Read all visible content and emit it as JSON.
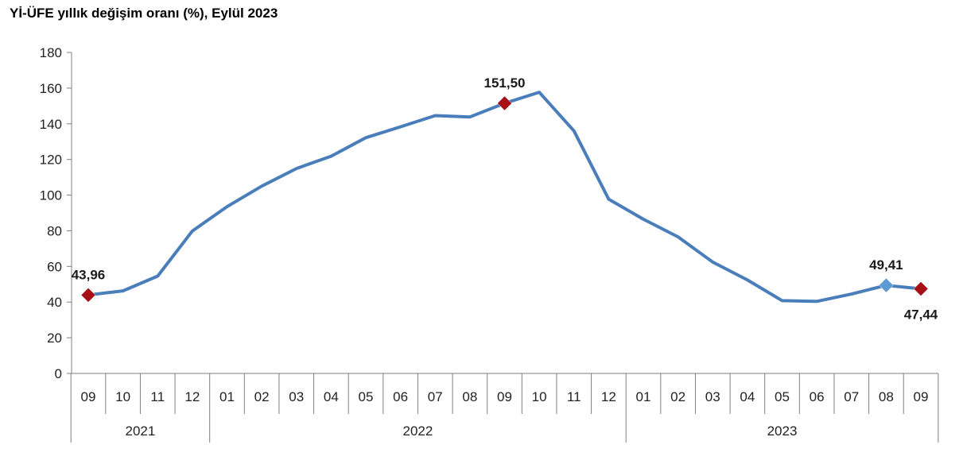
{
  "chart_data": {
    "type": "line",
    "title": "Yİ-ÜFE yıllık değişim oranı (%), Eylül 2023",
    "xlabel": "",
    "ylabel": "",
    "ylim": [
      0,
      180
    ],
    "yticks": [
      0,
      20,
      40,
      60,
      80,
      100,
      120,
      140,
      160,
      180
    ],
    "categories": [
      "09",
      "10",
      "11",
      "12",
      "01",
      "02",
      "03",
      "04",
      "05",
      "06",
      "07",
      "08",
      "09",
      "10",
      "11",
      "12",
      "01",
      "02",
      "03",
      "04",
      "05",
      "06",
      "07",
      "08",
      "09"
    ],
    "year_groups": [
      {
        "label": "2021",
        "count": 4
      },
      {
        "label": "2022",
        "count": 12
      },
      {
        "label": "2023",
        "count": 9
      }
    ],
    "series": [
      {
        "color": "#4a7ebb",
        "values": [
          43.96,
          46.3,
          54.6,
          79.9,
          93.5,
          105.0,
          114.9,
          121.8,
          132.2,
          138.3,
          144.6,
          143.8,
          151.5,
          157.7,
          136.0,
          97.7,
          86.5,
          76.6,
          62.4,
          52.4,
          40.8,
          40.4,
          44.5,
          49.41,
          47.44
        ]
      }
    ],
    "labels": [
      {
        "index": 0,
        "text": "43,96"
      },
      {
        "index": 12,
        "text": "151,50"
      },
      {
        "index": 23,
        "text": "49,41"
      },
      {
        "index": 24,
        "text": "47,44"
      }
    ],
    "markers": [
      {
        "index": 0,
        "color": "#a50f15"
      },
      {
        "index": 12,
        "color": "#a50f15"
      },
      {
        "index": 23,
        "color": "#5b9bd5"
      },
      {
        "index": 24,
        "color": "#a50f15"
      }
    ],
    "grid": false,
    "legend": "none"
  }
}
